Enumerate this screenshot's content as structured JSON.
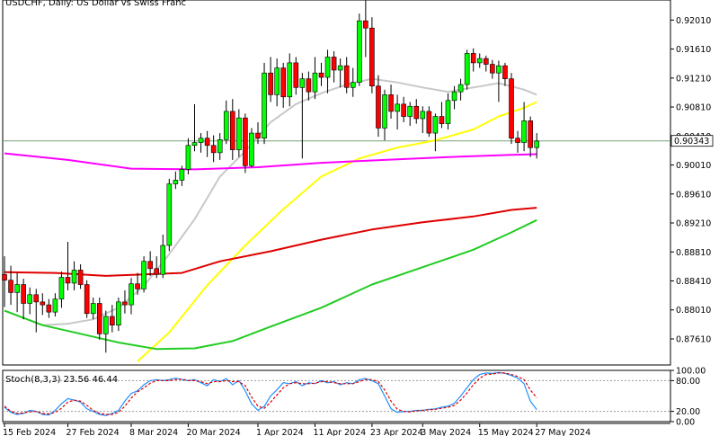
{
  "chart_data": {
    "type": "candlestick",
    "title": "USDCHF, Daily:  US Dollar vs Swiss Franc",
    "price_axis": {
      "ylim": [
        0.8725,
        0.9225
      ],
      "ticks": [
        "0.92010",
        "0.91610",
        "0.91210",
        "0.90810",
        "0.90410",
        "0.90010",
        "0.89610",
        "0.89210",
        "0.88810",
        "0.88410",
        "0.88010",
        "0.87610"
      ]
    },
    "current_price_label": "0.90343",
    "current_price": 0.90343,
    "x_tick_labels": [
      "15 Feb 2024",
      "27 Feb 2024",
      "8 Mar 2024",
      "20 Mar 2024",
      "1 Apr 2024",
      "11 Apr 2024",
      "23 Apr 2024",
      "3 May 2024",
      "15 May 2024",
      "27 May 2024"
    ],
    "x_tick_index": [
      0,
      10,
      20,
      29,
      40,
      49,
      58,
      66,
      75,
      84
    ],
    "candles": [
      {
        "o": 0.885,
        "h": 0.8875,
        "l": 0.8805,
        "c": 0.8842
      },
      {
        "o": 0.8842,
        "h": 0.8862,
        "l": 0.8808,
        "c": 0.8825
      },
      {
        "o": 0.8825,
        "h": 0.8852,
        "l": 0.8798,
        "c": 0.8836
      },
      {
        "o": 0.8836,
        "h": 0.8844,
        "l": 0.8788,
        "c": 0.881
      },
      {
        "o": 0.881,
        "h": 0.8832,
        "l": 0.8795,
        "c": 0.8822
      },
      {
        "o": 0.8822,
        "h": 0.883,
        "l": 0.877,
        "c": 0.8812
      },
      {
        "o": 0.8812,
        "h": 0.8824,
        "l": 0.8794,
        "c": 0.8808
      },
      {
        "o": 0.8808,
        "h": 0.8816,
        "l": 0.879,
        "c": 0.8798
      },
      {
        "o": 0.8798,
        "h": 0.8824,
        "l": 0.8792,
        "c": 0.8816
      },
      {
        "o": 0.8816,
        "h": 0.8854,
        "l": 0.8804,
        "c": 0.8846
      },
      {
        "o": 0.8846,
        "h": 0.8895,
        "l": 0.8828,
        "c": 0.8838
      },
      {
        "o": 0.8838,
        "h": 0.8868,
        "l": 0.8828,
        "c": 0.8856
      },
      {
        "o": 0.8856,
        "h": 0.8864,
        "l": 0.883,
        "c": 0.8836
      },
      {
        "o": 0.8836,
        "h": 0.8842,
        "l": 0.879,
        "c": 0.8796
      },
      {
        "o": 0.8796,
        "h": 0.8818,
        "l": 0.8788,
        "c": 0.881
      },
      {
        "o": 0.881,
        "h": 0.8818,
        "l": 0.876,
        "c": 0.8768
      },
      {
        "o": 0.8768,
        "h": 0.88,
        "l": 0.8742,
        "c": 0.8792
      },
      {
        "o": 0.8792,
        "h": 0.8808,
        "l": 0.877,
        "c": 0.878
      },
      {
        "o": 0.878,
        "h": 0.8818,
        "l": 0.8772,
        "c": 0.8812
      },
      {
        "o": 0.8812,
        "h": 0.8828,
        "l": 0.8796,
        "c": 0.8808
      },
      {
        "o": 0.8808,
        "h": 0.8845,
        "l": 0.8795,
        "c": 0.8837
      },
      {
        "o": 0.8837,
        "h": 0.8852,
        "l": 0.8822,
        "c": 0.883
      },
      {
        "o": 0.883,
        "h": 0.8875,
        "l": 0.8825,
        "c": 0.8868
      },
      {
        "o": 0.8868,
        "h": 0.8882,
        "l": 0.8848,
        "c": 0.8858
      },
      {
        "o": 0.8858,
        "h": 0.8875,
        "l": 0.8845,
        "c": 0.885
      },
      {
        "o": 0.885,
        "h": 0.8905,
        "l": 0.8845,
        "c": 0.889
      },
      {
        "o": 0.889,
        "h": 0.8982,
        "l": 0.8882,
        "c": 0.8975
      },
      {
        "o": 0.8975,
        "h": 0.8992,
        "l": 0.8968,
        "c": 0.898
      },
      {
        "o": 0.898,
        "h": 0.9,
        "l": 0.8972,
        "c": 0.8995
      },
      {
        "o": 0.8995,
        "h": 0.9038,
        "l": 0.8988,
        "c": 0.9028
      },
      {
        "o": 0.9028,
        "h": 0.9085,
        "l": 0.902,
        "c": 0.9032
      },
      {
        "o": 0.9032,
        "h": 0.9045,
        "l": 0.9018,
        "c": 0.9038
      },
      {
        "o": 0.9038,
        "h": 0.9048,
        "l": 0.9012,
        "c": 0.9028
      },
      {
        "o": 0.9028,
        "h": 0.9042,
        "l": 0.9005,
        "c": 0.9018
      },
      {
        "o": 0.9018,
        "h": 0.9045,
        "l": 0.9008,
        "c": 0.9036
      },
      {
        "o": 0.9036,
        "h": 0.909,
        "l": 0.903,
        "c": 0.9075
      },
      {
        "o": 0.9075,
        "h": 0.9092,
        "l": 0.9008,
        "c": 0.9022
      },
      {
        "o": 0.9022,
        "h": 0.9078,
        "l": 0.9012,
        "c": 0.9066
      },
      {
        "o": 0.9066,
        "h": 0.9072,
        "l": 0.899,
        "c": 0.9
      },
      {
        "o": 0.9,
        "h": 0.9052,
        "l": 0.8998,
        "c": 0.9045
      },
      {
        "o": 0.9045,
        "h": 0.906,
        "l": 0.903,
        "c": 0.9038
      },
      {
        "o": 0.9038,
        "h": 0.9142,
        "l": 0.903,
        "c": 0.9128
      },
      {
        "o": 0.9128,
        "h": 0.915,
        "l": 0.9088,
        "c": 0.9098
      },
      {
        "o": 0.9098,
        "h": 0.9148,
        "l": 0.9082,
        "c": 0.9135
      },
      {
        "o": 0.9135,
        "h": 0.9142,
        "l": 0.908,
        "c": 0.9095
      },
      {
        "o": 0.9095,
        "h": 0.9155,
        "l": 0.9082,
        "c": 0.9142
      },
      {
        "o": 0.9142,
        "h": 0.915,
        "l": 0.9098,
        "c": 0.9108
      },
      {
        "o": 0.9108,
        "h": 0.9128,
        "l": 0.901,
        "c": 0.912
      },
      {
        "o": 0.912,
        "h": 0.913,
        "l": 0.909,
        "c": 0.9102
      },
      {
        "o": 0.9102,
        "h": 0.915,
        "l": 0.9092,
        "c": 0.9128
      },
      {
        "o": 0.9128,
        "h": 0.9142,
        "l": 0.911,
        "c": 0.9122
      },
      {
        "o": 0.9122,
        "h": 0.916,
        "l": 0.91,
        "c": 0.915
      },
      {
        "o": 0.915,
        "h": 0.9158,
        "l": 0.9115,
        "c": 0.9132
      },
      {
        "o": 0.9132,
        "h": 0.9148,
        "l": 0.9108,
        "c": 0.9138
      },
      {
        "o": 0.9138,
        "h": 0.915,
        "l": 0.91,
        "c": 0.9108
      },
      {
        "o": 0.9108,
        "h": 0.9135,
        "l": 0.9095,
        "c": 0.9115
      },
      {
        "o": 0.9115,
        "h": 0.921,
        "l": 0.911,
        "c": 0.92
      },
      {
        "o": 0.92,
        "h": 0.9228,
        "l": 0.915,
        "c": 0.919
      },
      {
        "o": 0.919,
        "h": 0.9205,
        "l": 0.91,
        "c": 0.911
      },
      {
        "o": 0.911,
        "h": 0.9125,
        "l": 0.904,
        "c": 0.9052
      },
      {
        "o": 0.9052,
        "h": 0.9105,
        "l": 0.9035,
        "c": 0.9098
      },
      {
        "o": 0.9098,
        "h": 0.9112,
        "l": 0.9065,
        "c": 0.9075
      },
      {
        "o": 0.9075,
        "h": 0.9098,
        "l": 0.905,
        "c": 0.9085
      },
      {
        "o": 0.9085,
        "h": 0.9095,
        "l": 0.906,
        "c": 0.9068
      },
      {
        "o": 0.9068,
        "h": 0.9088,
        "l": 0.9055,
        "c": 0.9082
      },
      {
        "o": 0.9082,
        "h": 0.9092,
        "l": 0.9058,
        "c": 0.9065
      },
      {
        "o": 0.9065,
        "h": 0.9082,
        "l": 0.9045,
        "c": 0.9075
      },
      {
        "o": 0.9075,
        "h": 0.9082,
        "l": 0.904,
        "c": 0.9045
      },
      {
        "o": 0.9045,
        "h": 0.9072,
        "l": 0.902,
        "c": 0.9068
      },
      {
        "o": 0.9068,
        "h": 0.9088,
        "l": 0.9052,
        "c": 0.9058
      },
      {
        "o": 0.9058,
        "h": 0.91,
        "l": 0.905,
        "c": 0.909
      },
      {
        "o": 0.909,
        "h": 0.911,
        "l": 0.9078,
        "c": 0.9102
      },
      {
        "o": 0.9102,
        "h": 0.912,
        "l": 0.909,
        "c": 0.9112
      },
      {
        "o": 0.9112,
        "h": 0.916,
        "l": 0.9105,
        "c": 0.9155
      },
      {
        "o": 0.9155,
        "h": 0.9162,
        "l": 0.913,
        "c": 0.9142
      },
      {
        "o": 0.9142,
        "h": 0.9155,
        "l": 0.9135,
        "c": 0.9148
      },
      {
        "o": 0.9148,
        "h": 0.9152,
        "l": 0.913,
        "c": 0.914
      },
      {
        "o": 0.914,
        "h": 0.9146,
        "l": 0.912,
        "c": 0.9128
      },
      {
        "o": 0.9128,
        "h": 0.9145,
        "l": 0.9088,
        "c": 0.9138
      },
      {
        "o": 0.9138,
        "h": 0.9142,
        "l": 0.911,
        "c": 0.912
      },
      {
        "o": 0.912,
        "h": 0.9128,
        "l": 0.903,
        "c": 0.9038
      },
      {
        "o": 0.9038,
        "h": 0.9048,
        "l": 0.9018,
        "c": 0.9032
      },
      {
        "o": 0.9032,
        "h": 0.9088,
        "l": 0.902,
        "c": 0.9062
      },
      {
        "o": 0.9062,
        "h": 0.9068,
        "l": 0.9012,
        "c": 0.9025
      },
      {
        "o": 0.9025,
        "h": 0.9045,
        "l": 0.901,
        "c": 0.9034
      }
    ],
    "moving_averages": [
      {
        "name": "",
        "color": "#c8c8c8",
        "values": [
          [
            0,
            0.88
          ],
          [
            6,
            0.878
          ],
          [
            10,
            0.8782
          ],
          [
            14,
            0.8788
          ],
          [
            18,
            0.8804
          ],
          [
            22,
            0.8834
          ],
          [
            26,
            0.8878
          ],
          [
            30,
            0.8926
          ],
          [
            34,
            0.8985
          ],
          [
            38,
            0.902
          ],
          [
            42,
            0.906
          ],
          [
            46,
            0.9085
          ],
          [
            50,
            0.91
          ],
          [
            54,
            0.9112
          ],
          [
            58,
            0.912
          ],
          [
            62,
            0.9115
          ],
          [
            66,
            0.9108
          ],
          [
            70,
            0.9102
          ],
          [
            74,
            0.9108
          ],
          [
            78,
            0.9114
          ],
          [
            82,
            0.9105
          ],
          [
            84,
            0.9098
          ]
        ]
      },
      {
        "name": "",
        "color": "#ffff00",
        "values": [
          [
            21,
            0.873
          ],
          [
            26,
            0.877
          ],
          [
            32,
            0.8835
          ],
          [
            38,
            0.889
          ],
          [
            44,
            0.894
          ],
          [
            50,
            0.8985
          ],
          [
            56,
            0.901
          ],
          [
            62,
            0.9025
          ],
          [
            68,
            0.9035
          ],
          [
            74,
            0.905
          ],
          [
            78,
            0.9068
          ],
          [
            82,
            0.908
          ],
          [
            84,
            0.9088
          ]
        ]
      },
      {
        "name": "",
        "color": "#ff00ff",
        "values": [
          [
            0,
            0.9017
          ],
          [
            10,
            0.9008
          ],
          [
            20,
            0.8996
          ],
          [
            30,
            0.8995
          ],
          [
            40,
            0.8998
          ],
          [
            50,
            0.9004
          ],
          [
            60,
            0.9008
          ],
          [
            70,
            0.9012
          ],
          [
            80,
            0.9015
          ],
          [
            84,
            0.9016
          ]
        ]
      },
      {
        "name": "",
        "color": "#e00000",
        "values": [
          [
            0,
            0.8853
          ],
          [
            8,
            0.8852
          ],
          [
            16,
            0.8848
          ],
          [
            22,
            0.885
          ],
          [
            28,
            0.8852
          ],
          [
            34,
            0.8868
          ],
          [
            42,
            0.8882
          ],
          [
            50,
            0.8898
          ],
          [
            58,
            0.8912
          ],
          [
            66,
            0.8922
          ],
          [
            74,
            0.893
          ],
          [
            80,
            0.8939
          ],
          [
            84,
            0.8942
          ]
        ]
      },
      {
        "name": "",
        "color": "#22cc22",
        "values": [
          [
            0,
            0.88
          ],
          [
            6,
            0.878
          ],
          [
            12,
            0.8768
          ],
          [
            18,
            0.8756
          ],
          [
            24,
            0.8747
          ],
          [
            30,
            0.8748
          ],
          [
            36,
            0.8758
          ],
          [
            42,
            0.8778
          ],
          [
            50,
            0.8804
          ],
          [
            58,
            0.8836
          ],
          [
            66,
            0.886
          ],
          [
            74,
            0.8884
          ],
          [
            80,
            0.8908
          ],
          [
            84,
            0.8925
          ]
        ]
      }
    ],
    "stochastic": {
      "label": "Stoch(8,3,3) 23.56 46.44",
      "ylim": [
        0,
        100
      ],
      "ticks": [
        "100.00",
        "80.00",
        "20.00",
        "0.00"
      ],
      "main": [
        28,
        18,
        14,
        16,
        22,
        20,
        14,
        13,
        22,
        35,
        45,
        42,
        38,
        25,
        20,
        14,
        12,
        16,
        22,
        40,
        55,
        60,
        72,
        80,
        82,
        80,
        82,
        85,
        82,
        80,
        82,
        76,
        70,
        82,
        78,
        84,
        72,
        80,
        60,
        35,
        22,
        30,
        50,
        62,
        76,
        74,
        78,
        70,
        76,
        74,
        80,
        76,
        78,
        72,
        76,
        74,
        82,
        84,
        80,
        74,
        50,
        25,
        18,
        20,
        20,
        22,
        22,
        24,
        25,
        28,
        30,
        36,
        50,
        66,
        82,
        92,
        95,
        94,
        96,
        94,
        90,
        85,
        74,
        40,
        23.56
      ],
      "signal": [
        30,
        20,
        16,
        17,
        19,
        20,
        16,
        15,
        18,
        26,
        38,
        42,
        40,
        32,
        22,
        16,
        14,
        14,
        18,
        30,
        46,
        58,
        66,
        75,
        80,
        80,
        80,
        82,
        83,
        80,
        80,
        78,
        74,
        78,
        78,
        80,
        78,
        78,
        70,
        48,
        30,
        26,
        38,
        52,
        66,
        74,
        76,
        74,
        74,
        75,
        78,
        78,
        76,
        74,
        74,
        74,
        78,
        82,
        82,
        78,
        62,
        40,
        24,
        20,
        19,
        21,
        22,
        23,
        24,
        26,
        28,
        32,
        42,
        56,
        72,
        85,
        92,
        93,
        95,
        95,
        92,
        88,
        82,
        62,
        46.44
      ]
    }
  }
}
